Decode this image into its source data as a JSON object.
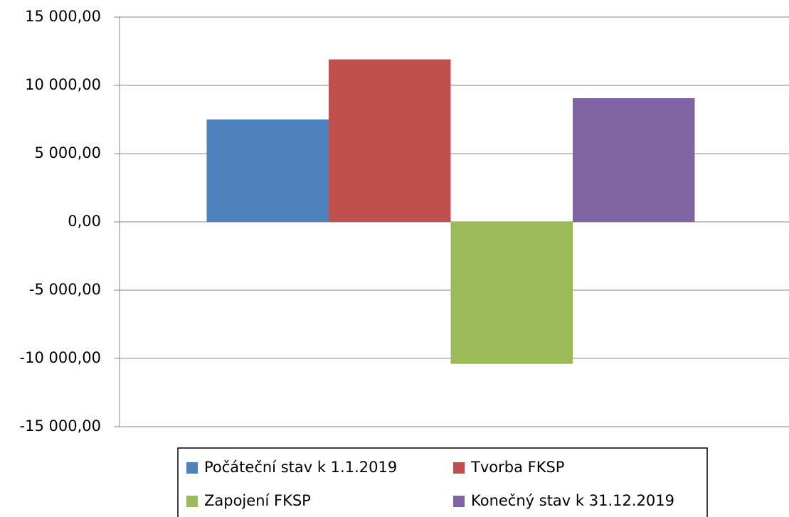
{
  "chart_data": {
    "type": "bar",
    "categories": [
      null
    ],
    "series": [
      {
        "name": "Počáteční stav k 1.1.2019",
        "color": "#4f81bd",
        "values": [
          7500
        ]
      },
      {
        "name": "Tvorba FKSP",
        "color": "#c0504d",
        "values": [
          11900
        ]
      },
      {
        "name": "Zapojení FKSP",
        "color": "#9bbb59",
        "values": [
          -10400
        ]
      },
      {
        "name": "Konečný stav k 31.12.2019",
        "color": "#8064a2",
        "values": [
          9060
        ]
      }
    ],
    "ylim": [
      -15000,
      15000
    ],
    "yticks": [
      {
        "value": -15000,
        "label": "-15 000,00"
      },
      {
        "value": -10000,
        "label": "-10 000,00"
      },
      {
        "value": -5000,
        "label": "-5 000,00"
      },
      {
        "value": 0,
        "label": "0,00"
      },
      {
        "value": 5000,
        "label": "5 000,00"
      },
      {
        "value": 10000,
        "label": "10 000,00"
      },
      {
        "value": 15000,
        "label": "15 000,00"
      }
    ],
    "grid": true,
    "legend": "bottom"
  }
}
